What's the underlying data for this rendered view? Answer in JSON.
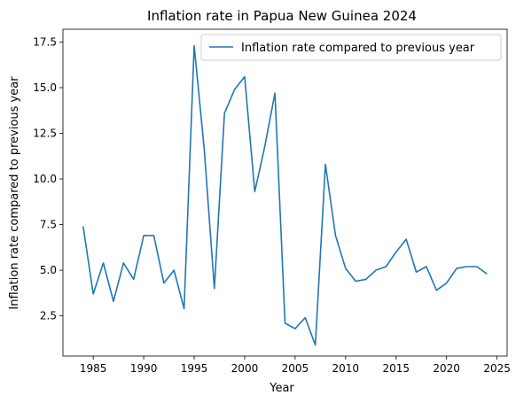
{
  "chart_data": {
    "type": "line",
    "title": "Inflation rate in Papua New Guinea 2024",
    "xlabel": "Year",
    "ylabel": "Inflation rate compared to previous year",
    "xlim": [
      1982,
      2026
    ],
    "ylim": [
      0.3,
      18.2
    ],
    "xticks": [
      1985,
      1990,
      1995,
      2000,
      2005,
      2010,
      2015,
      2020,
      2025
    ],
    "yticks": [
      2.5,
      5.0,
      7.5,
      10.0,
      12.5,
      15.0,
      17.5
    ],
    "xtick_labels": [
      "1985",
      "1990",
      "1995",
      "2000",
      "2005",
      "2010",
      "2015",
      "2020",
      "2025"
    ],
    "ytick_labels": [
      "2.5",
      "5.0",
      "7.5",
      "10.0",
      "12.5",
      "15.0",
      "17.5"
    ],
    "legend_position": "top-right",
    "grid": false,
    "color": "#1f77b4",
    "series": [
      {
        "name": "Inflation rate compared to previous year",
        "x": [
          1984,
          1985,
          1986,
          1987,
          1988,
          1989,
          1990,
          1991,
          1992,
          1993,
          1994,
          1995,
          1996,
          1997,
          1998,
          1999,
          2000,
          2001,
          2002,
          2003,
          2004,
          2005,
          2006,
          2007,
          2008,
          2009,
          2010,
          2011,
          2012,
          2013,
          2014,
          2015,
          2016,
          2017,
          2018,
          2019,
          2020,
          2021,
          2022,
          2023,
          2024
        ],
        "values": [
          7.4,
          3.7,
          5.4,
          3.3,
          5.4,
          4.5,
          6.9,
          6.9,
          4.3,
          5.0,
          2.9,
          17.3,
          11.6,
          4.0,
          13.6,
          14.9,
          15.6,
          9.3,
          11.8,
          14.7,
          2.1,
          1.8,
          2.4,
          0.9,
          10.8,
          6.9,
          5.1,
          4.4,
          4.5,
          5.0,
          5.2,
          6.0,
          6.7,
          4.9,
          5.2,
          3.9,
          4.3,
          5.1,
          5.2,
          5.2,
          4.8
        ]
      }
    ]
  }
}
